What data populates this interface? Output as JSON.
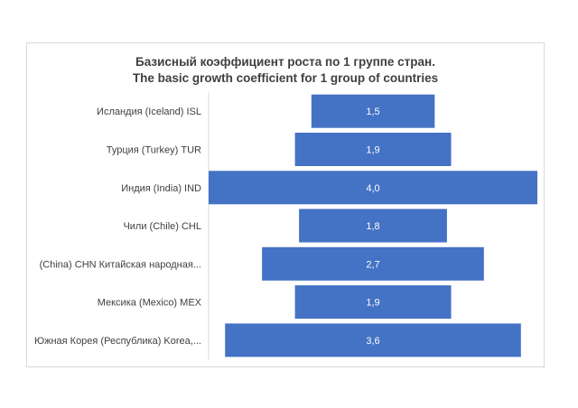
{
  "chart_data": {
    "type": "bar",
    "orientation": "horizontal",
    "layout": "centered",
    "title_lines": [
      "Базисный коэффициент роста по 1 группе стран.",
      "The basic growth coefficient for 1 group of countries"
    ],
    "categories": [
      "Исландия (Iceland) ISL",
      "Турция (Turkey) TUR",
      "Индия (India) IND",
      "Чили (Chile) CHL",
      "(China) CHN Китайская народная...",
      "Мексика (Mexico) MEX",
      "Южная Корея (Республика) Korea,..."
    ],
    "values": [
      1.5,
      1.9,
      4.0,
      1.8,
      2.7,
      1.9,
      3.6
    ],
    "value_labels": [
      "1,5",
      "1,9",
      "4,0",
      "1,8",
      "2,7",
      "1,9",
      "3,6"
    ],
    "bar_color": "#4472c4",
    "label_color": "#ffffff",
    "grid": false,
    "legend": "none"
  }
}
